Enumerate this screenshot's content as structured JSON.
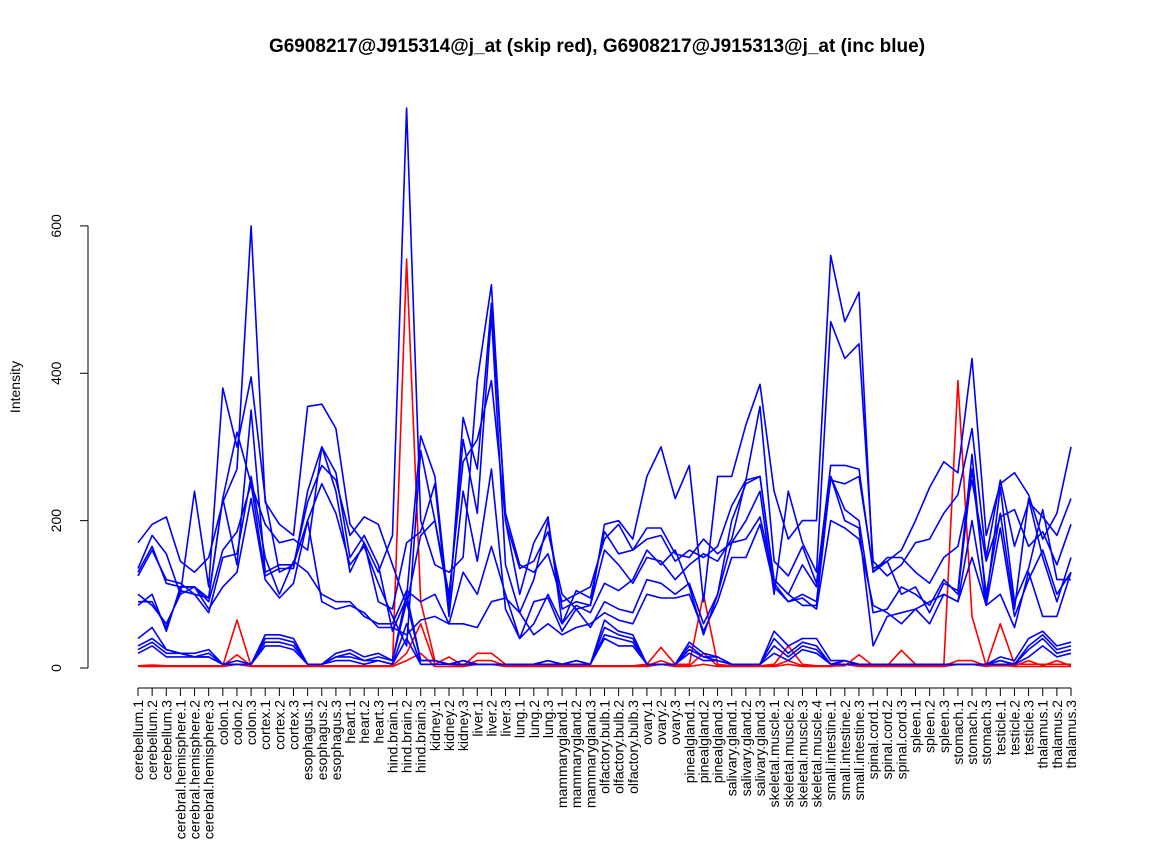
{
  "chart_data": {
    "type": "line",
    "title": "G6908217@J915314@j_at (skip red), G6908217@J915313@j_at (inc blue)",
    "xlabel": "",
    "ylabel": "Intensity",
    "ylim": [
      0,
      760
    ],
    "yticks": [
      0,
      200,
      400,
      600
    ],
    "categories": [
      "cerebellum.1",
      "cerebellum.2",
      "cerebellum.3",
      "cerebral.hemisphere.1",
      "cerebral.hemisphere.2",
      "cerebral.hemisphere.3",
      "colon.1",
      "colon.2",
      "colon.3",
      "cortex.1",
      "cortex.2",
      "cortex.3",
      "esophagus.1",
      "esophagus.2",
      "esophagus.3",
      "heart.1",
      "heart.2",
      "heart.3",
      "hind.brain.1",
      "hind.brain.2",
      "hind.brain.3",
      "kidney.1",
      "kidney.2",
      "kidney.3",
      "liver.1",
      "liver.2",
      "liver.3",
      "lung.1",
      "lung.2",
      "lung.3",
      "mammarygland.1",
      "mammarygland.2",
      "mammarygland.3",
      "olfactory.bulb.1",
      "olfactory.bulb.2",
      "olfactory.bulb.3",
      "ovary.1",
      "ovary.2",
      "ovary.3",
      "pinealgland.1",
      "pinealgland.2",
      "pinealgland.3",
      "salivary.gland.1",
      "salivary.gland.2",
      "salivary.gland.3",
      "skeletal.muscle.1",
      "skeletal.muscle.2",
      "skeletal.muscle.3",
      "skeletal.muscle.4",
      "small.intestine.1",
      "small.intestine.2",
      "small.intestine.3",
      "spinal.cord.1",
      "spinal.cord.2",
      "spinal.cord.3",
      "spleen.1",
      "spleen.2",
      "spleen.3",
      "stomach.1",
      "stomach.2",
      "stomach.3",
      "testicle.1",
      "testicle.2",
      "testicle.3",
      "thalamus.1",
      "thalamus.2",
      "thalamus.3"
    ],
    "series": [
      {
        "color": "#ff0000",
        "values": [
          3,
          4,
          3,
          3,
          3,
          3,
          3,
          65,
          3,
          3,
          3,
          3,
          3,
          3,
          3,
          3,
          3,
          3,
          3,
          555,
          90,
          10,
          5,
          3,
          20,
          20,
          5,
          3,
          3,
          3,
          3,
          3,
          3,
          3,
          3,
          3,
          5,
          28,
          5,
          5,
          100,
          5,
          3,
          3,
          3,
          5,
          30,
          5,
          3,
          3,
          3,
          18,
          3,
          3,
          24,
          5,
          5,
          3,
          390,
          70,
          3,
          60,
          5,
          5,
          5,
          5,
          5
        ]
      },
      {
        "color": "#ff0000",
        "values": [
          3,
          3,
          3,
          3,
          3,
          3,
          3,
          18,
          3,
          3,
          3,
          3,
          3,
          3,
          3,
          3,
          3,
          3,
          3,
          20,
          60,
          5,
          15,
          3,
          10,
          10,
          3,
          3,
          3,
          3,
          3,
          3,
          3,
          3,
          3,
          3,
          3,
          10,
          3,
          3,
          20,
          3,
          3,
          3,
          3,
          3,
          10,
          3,
          3,
          3,
          10,
          3,
          3,
          3,
          3,
          3,
          3,
          3,
          10,
          10,
          3,
          3,
          3,
          10,
          3,
          10,
          3
        ]
      },
      {
        "color": "#ff0000",
        "values": [
          2,
          2,
          2,
          2,
          2,
          2,
          2,
          5,
          2,
          2,
          2,
          2,
          2,
          2,
          2,
          2,
          2,
          2,
          2,
          10,
          20,
          2,
          2,
          2,
          5,
          5,
          2,
          2,
          2,
          2,
          2,
          2,
          2,
          2,
          2,
          2,
          2,
          5,
          2,
          2,
          5,
          2,
          2,
          2,
          2,
          2,
          5,
          2,
          2,
          2,
          5,
          2,
          2,
          2,
          2,
          2,
          2,
          2,
          5,
          5,
          2,
          5,
          2,
          2,
          2,
          2,
          2
        ]
      },
      {
        "color": "#0000ff",
        "values": [
          170,
          195,
          205,
          145,
          130,
          150,
          225,
          270,
          600,
          225,
          195,
          180,
          355,
          358,
          325,
          195,
          170,
          130,
          180,
          760,
          200,
          140,
          130,
          150,
          390,
          520,
          200,
          135,
          145,
          185,
          100,
          80,
          85,
          195,
          200,
          175,
          260,
          300,
          230,
          275,
          90,
          260,
          260,
          330,
          385,
          240,
          175,
          200,
          200,
          560,
          470,
          510,
          130,
          145,
          160,
          200,
          245,
          280,
          265,
          420,
          180,
          250,
          265,
          235,
          175,
          210,
          300
        ]
      },
      {
        "color": "#0000ff",
        "values": [
          135,
          180,
          155,
          100,
          240,
          110,
          380,
          300,
          395,
          230,
          130,
          140,
          225,
          275,
          255,
          180,
          205,
          195,
          140,
          85,
          180,
          200,
          100,
          280,
          310,
          390,
          200,
          100,
          170,
          205,
          60,
          105,
          95,
          185,
          155,
          160,
          190,
          190,
          155,
          150,
          175,
          155,
          170,
          200,
          240,
          100,
          240,
          170,
          130,
          470,
          420,
          440,
          145,
          125,
          140,
          170,
          175,
          210,
          235,
          325,
          150,
          255,
          165,
          225,
          205,
          180,
          230
        ]
      },
      {
        "color": "#0000ff",
        "values": [
          125,
          160,
          120,
          115,
          100,
          95,
          230,
          320,
          250,
          195,
          170,
          175,
          160,
          300,
          265,
          150,
          180,
          140,
          50,
          95,
          315,
          260,
          80,
          340,
          270,
          495,
          210,
          140,
          130,
          155,
          90,
          100,
          110,
          175,
          195,
          160,
          175,
          180,
          145,
          160,
          150,
          165,
          220,
          255,
          355,
          145,
          125,
          165,
          115,
          275,
          275,
          270,
          130,
          150,
          150,
          130,
          115,
          150,
          165,
          255,
          145,
          205,
          215,
          165,
          185,
          140,
          195
        ]
      },
      {
        "color": "#0000ff",
        "values": [
          130,
          165,
          115,
          110,
          110,
          95,
          230,
          140,
          350,
          130,
          140,
          140,
          200,
          250,
          210,
          140,
          165,
          115,
          70,
          30,
          295,
          200,
          90,
          310,
          210,
          480,
          140,
          75,
          120,
          200,
          80,
          90,
          85,
          160,
          140,
          115,
          150,
          145,
          120,
          140,
          155,
          145,
          175,
          255,
          260,
          120,
          100,
          140,
          110,
          255,
          250,
          260,
          135,
          145,
          100,
          110,
          75,
          115,
          105,
          290,
          90,
          245,
          90,
          135,
          215,
          120,
          120
        ]
      },
      {
        "color": "#0000ff",
        "values": [
          100,
          85,
          60,
          100,
          110,
          90,
          160,
          185,
          250,
          125,
          135,
          135,
          240,
          300,
          240,
          130,
          170,
          90,
          80,
          170,
          185,
          250,
          70,
          240,
          145,
          270,
          80,
          40,
          60,
          100,
          60,
          85,
          75,
          115,
          105,
          120,
          160,
          140,
          160,
          110,
          45,
          100,
          200,
          250,
          260,
          115,
          90,
          100,
          90,
          260,
          215,
          200,
          75,
          80,
          110,
          100,
          85,
          120,
          100,
          270,
          100,
          210,
          80,
          230,
          150,
          90,
          150
        ]
      },
      {
        "color": "#0000ff",
        "values": [
          90,
          90,
          55,
          105,
          100,
          75,
          150,
          155,
          260,
          150,
          100,
          145,
          130,
          100,
          90,
          90,
          70,
          60,
          60,
          105,
          90,
          100,
          60,
          130,
          100,
          165,
          100,
          40,
          90,
          95,
          50,
          80,
          55,
          90,
          80,
          75,
          120,
          115,
          100,
          115,
          60,
          100,
          170,
          175,
          205,
          120,
          100,
          85,
          85,
          260,
          200,
          190,
          30,
          70,
          75,
          80,
          90,
          100,
          90,
          200,
          85,
          190,
          70,
          120,
          160,
          100,
          130
        ]
      },
      {
        "color": "#0000ff",
        "values": [
          85,
          100,
          50,
          110,
          110,
          80,
          110,
          130,
          230,
          120,
          95,
          115,
          200,
          90,
          80,
          85,
          75,
          55,
          55,
          45,
          65,
          70,
          60,
          60,
          55,
          90,
          95,
          75,
          45,
          60,
          45,
          55,
          60,
          75,
          65,
          60,
          100,
          95,
          95,
          100,
          50,
          90,
          150,
          150,
          195,
          110,
          90,
          95,
          80,
          200,
          190,
          175,
          85,
          75,
          60,
          80,
          60,
          100,
          90,
          150,
          85,
          100,
          55,
          130,
          70,
          70,
          130
        ]
      },
      {
        "color": "#0000ff",
        "values": [
          40,
          55,
          25,
          20,
          20,
          25,
          5,
          5,
          5,
          45,
          45,
          40,
          5,
          5,
          20,
          25,
          15,
          20,
          10,
          100,
          10,
          10,
          5,
          10,
          5,
          5,
          5,
          5,
          5,
          10,
          5,
          10,
          5,
          65,
          50,
          45,
          5,
          5,
          5,
          35,
          20,
          15,
          5,
          5,
          5,
          50,
          30,
          40,
          40,
          10,
          10,
          5,
          5,
          5,
          5,
          5,
          5,
          5,
          5,
          5,
          5,
          15,
          10,
          40,
          50,
          30,
          35
        ]
      },
      {
        "color": "#0000ff",
        "values": [
          30,
          40,
          25,
          20,
          15,
          20,
          5,
          10,
          5,
          40,
          40,
          35,
          5,
          5,
          15,
          20,
          10,
          15,
          10,
          90,
          10,
          10,
          5,
          10,
          5,
          5,
          5,
          5,
          5,
          10,
          5,
          10,
          5,
          55,
          45,
          40,
          5,
          5,
          5,
          30,
          15,
          15,
          5,
          5,
          5,
          40,
          20,
          35,
          30,
          5,
          10,
          5,
          5,
          5,
          5,
          5,
          5,
          5,
          5,
          5,
          5,
          10,
          5,
          30,
          45,
          25,
          30
        ]
      },
      {
        "color": "#0000ff",
        "values": [
          25,
          35,
          20,
          20,
          15,
          15,
          5,
          5,
          5,
          35,
          35,
          30,
          5,
          5,
          15,
          15,
          10,
          10,
          5,
          60,
          5,
          5,
          5,
          5,
          5,
          5,
          5,
          5,
          5,
          5,
          5,
          5,
          5,
          45,
          40,
          35,
          5,
          5,
          5,
          25,
          15,
          10,
          5,
          5,
          5,
          30,
          15,
          30,
          25,
          5,
          5,
          5,
          5,
          5,
          5,
          5,
          5,
          5,
          5,
          5,
          5,
          10,
          5,
          25,
          40,
          20,
          25
        ]
      },
      {
        "color": "#0000ff",
        "values": [
          20,
          30,
          15,
          15,
          15,
          15,
          5,
          5,
          5,
          30,
          30,
          25,
          5,
          5,
          10,
          10,
          5,
          10,
          5,
          40,
          5,
          5,
          5,
          5,
          5,
          5,
          5,
          5,
          5,
          5,
          5,
          5,
          5,
          40,
          30,
          30,
          5,
          5,
          5,
          20,
          10,
          10,
          5,
          5,
          5,
          20,
          10,
          25,
          20,
          5,
          5,
          5,
          5,
          5,
          5,
          5,
          5,
          5,
          5,
          5,
          5,
          5,
          5,
          15,
          30,
          15,
          20
        ]
      }
    ]
  }
}
